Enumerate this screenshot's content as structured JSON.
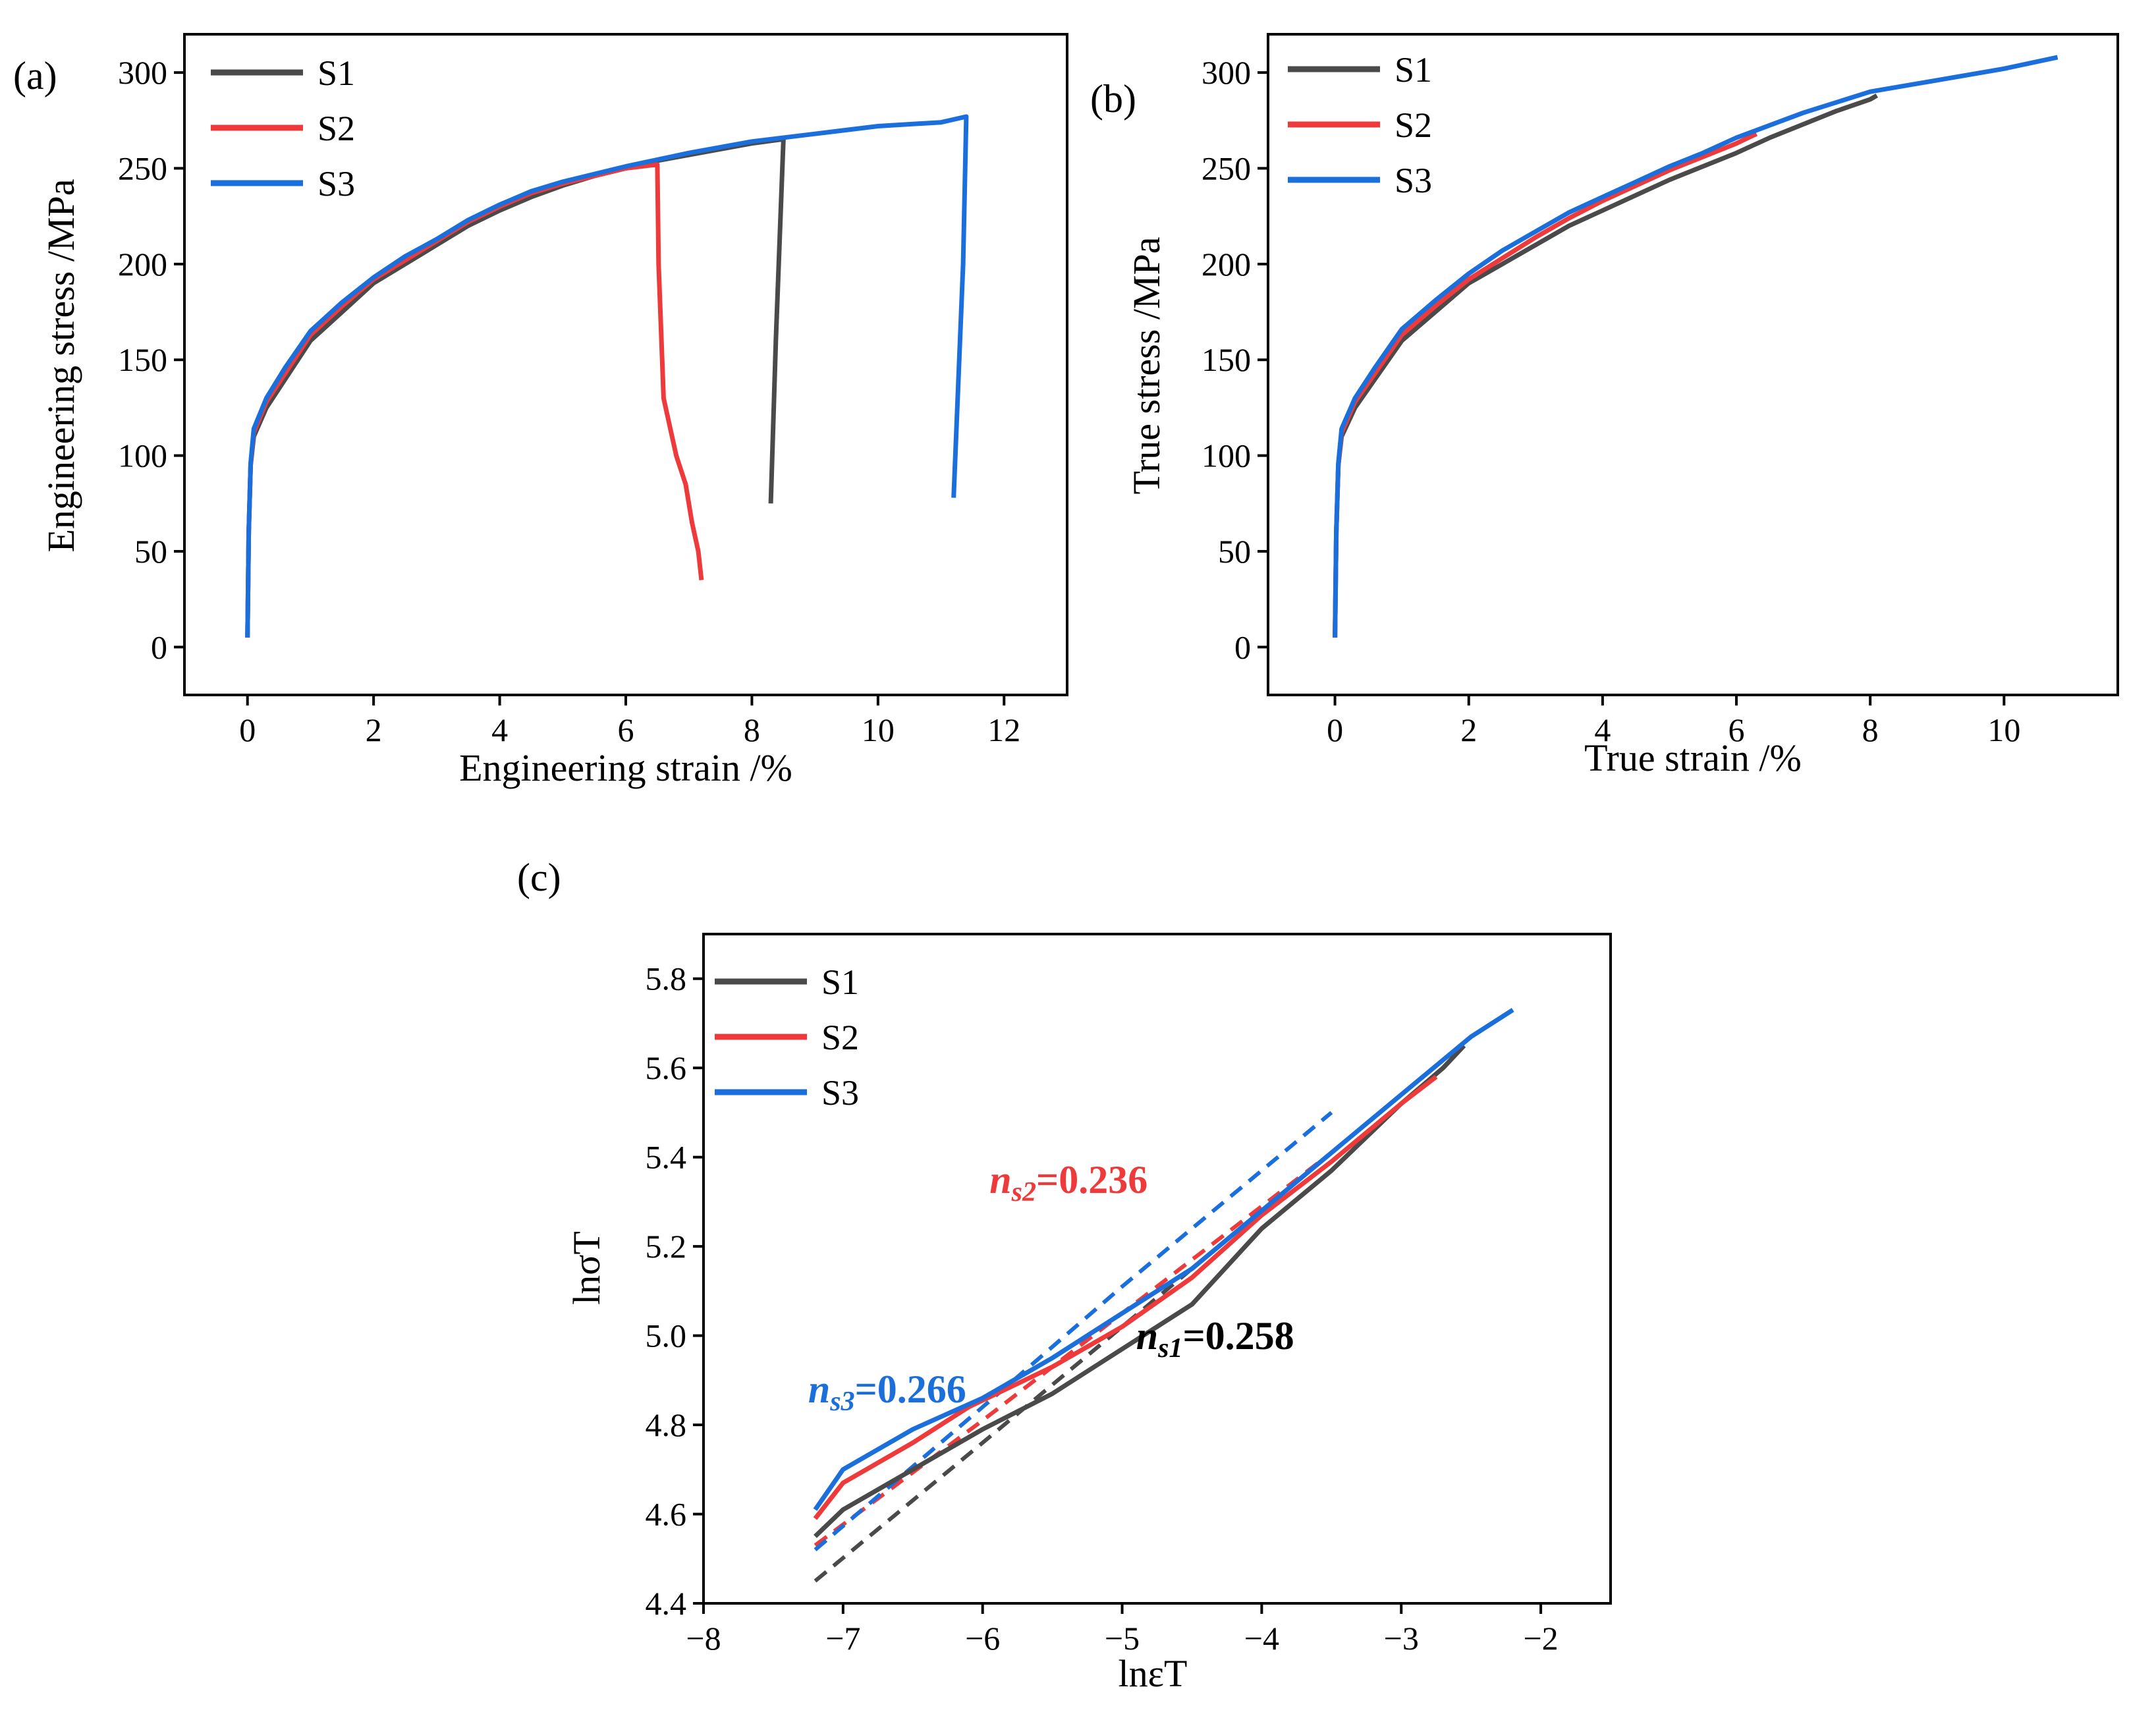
{
  "colors": {
    "S1": "#4a4a4a",
    "S2": "#ee3a3a",
    "S3": "#1a6fdc"
  },
  "chart_data": [
    {
      "panel": "(a)",
      "type": "line",
      "xlabel": "Engineering strain /%",
      "ylabel": "Engineering stress /MPa",
      "xlim": [
        -1,
        13
      ],
      "ylim": [
        -25,
        320
      ],
      "xticks": [
        "0",
        "2",
        "4",
        "6",
        "8",
        "10",
        "12"
      ],
      "yticks": [
        "0",
        "50",
        "100",
        "150",
        "200",
        "250",
        "300"
      ],
      "legend": [
        "S1",
        "S2",
        "S3"
      ],
      "series": [
        {
          "name": "S1",
          "x": [
            0,
            0.02,
            0.05,
            0.1,
            0.3,
            0.6,
            1.0,
            1.5,
            2.0,
            2.5,
            3.0,
            3.5,
            4.0,
            4.5,
            5.0,
            5.5,
            6.0,
            6.5,
            7.0,
            7.5,
            8.0,
            8.45,
            8.5,
            8.38,
            8.3
          ],
          "y": [
            5,
            60,
            95,
            110,
            125,
            140,
            160,
            175,
            190,
            200,
            210,
            220,
            228,
            235,
            241,
            246,
            250,
            254,
            257,
            260,
            263,
            265,
            265,
            160,
            75
          ]
        },
        {
          "name": "S2",
          "x": [
            0,
            0.02,
            0.05,
            0.1,
            0.3,
            0.6,
            1.0,
            1.5,
            2.0,
            2.5,
            3.0,
            3.5,
            4.0,
            4.5,
            5.0,
            5.5,
            6.0,
            6.5,
            6.52,
            6.6,
            6.8,
            6.95,
            7.05,
            7.15,
            7.2
          ],
          "y": [
            5,
            60,
            95,
            112,
            128,
            143,
            163,
            178,
            192,
            202,
            212,
            222,
            230,
            237,
            242,
            246,
            250,
            252,
            200,
            130,
            100,
            85,
            65,
            50,
            35
          ]
        },
        {
          "name": "S3",
          "x": [
            0,
            0.02,
            0.05,
            0.1,
            0.3,
            0.6,
            1.0,
            1.5,
            2.0,
            2.5,
            3.0,
            3.5,
            4.0,
            4.5,
            5.0,
            6.0,
            7.0,
            8.0,
            9.0,
            10.0,
            11.0,
            11.4,
            11.35,
            11.2
          ],
          "y": [
            5,
            60,
            96,
            114,
            130,
            146,
            165,
            180,
            193,
            204,
            213,
            223,
            231,
            238,
            243,
            251,
            258,
            264,
            268,
            272,
            274,
            277,
            200,
            78
          ]
        }
      ]
    },
    {
      "panel": "(b)",
      "type": "line",
      "xlabel": "True strain /%",
      "ylabel": "True stress /MPa",
      "xlim": [
        -1,
        11.7
      ],
      "ylim": [
        -25,
        320
      ],
      "xticks": [
        "0",
        "2",
        "4",
        "6",
        "8",
        "10"
      ],
      "yticks": [
        "0",
        "50",
        "100",
        "150",
        "200",
        "250",
        "300"
      ],
      "legend": [
        "S1",
        "S2",
        "S3"
      ],
      "series": [
        {
          "name": "S1",
          "x": [
            0,
            0.02,
            0.05,
            0.1,
            0.3,
            0.6,
            1.0,
            1.5,
            2.0,
            2.5,
            3.0,
            3.5,
            4.0,
            4.5,
            5.0,
            5.5,
            6.0,
            6.5,
            7.0,
            7.5,
            8.0,
            8.1
          ],
          "y": [
            5,
            60,
            95,
            110,
            125,
            140,
            160,
            175,
            190,
            200,
            210,
            220,
            228,
            236,
            244,
            251,
            258,
            266,
            273,
            280,
            286,
            288
          ]
        },
        {
          "name": "S2",
          "x": [
            0,
            0.02,
            0.05,
            0.1,
            0.3,
            0.6,
            1.0,
            1.5,
            2.0,
            2.5,
            3.0,
            3.5,
            4.0,
            4.5,
            5.0,
            5.5,
            6.0,
            6.3
          ],
          "y": [
            5,
            60,
            95,
            112,
            128,
            143,
            163,
            178,
            192,
            203,
            214,
            224,
            233,
            241,
            249,
            256,
            263,
            268
          ]
        },
        {
          "name": "S3",
          "x": [
            0,
            0.02,
            0.05,
            0.1,
            0.3,
            0.6,
            1.0,
            1.5,
            2.0,
            2.5,
            3.0,
            3.5,
            4.0,
            4.5,
            5.0,
            5.5,
            6.0,
            7.0,
            8.0,
            9.0,
            10.0,
            10.8
          ],
          "y": [
            5,
            60,
            96,
            114,
            130,
            146,
            166,
            181,
            195,
            207,
            217,
            227,
            235,
            243,
            251,
            258,
            266,
            279,
            290,
            296,
            302,
            308
          ]
        }
      ]
    },
    {
      "panel": "(c)",
      "type": "line",
      "xlabel": "lnεT",
      "ylabel": "lnσT",
      "xlim": [
        -8,
        -1.5
      ],
      "ylim": [
        4.4,
        5.9
      ],
      "xticks": [
        "−8",
        "−7",
        "−6",
        "−5",
        "−4",
        "−3",
        "−2"
      ],
      "yticks": [
        "4.4",
        "4.6",
        "4.8",
        "5.0",
        "5.2",
        "5.4",
        "5.6",
        "5.8"
      ],
      "legend": [
        "S1",
        "S2",
        "S3"
      ],
      "annotations": [
        {
          "series": "S2",
          "n_label": "n",
          "sub": "s2",
          "value": "=0.236",
          "at": [
            -5.95,
            5.32
          ]
        },
        {
          "series": "S1",
          "n_label": "n",
          "sub": "s1",
          "value": "=0.258",
          "at": [
            -4.9,
            4.97
          ]
        },
        {
          "series": "S3",
          "n_label": "n",
          "sub": "s3",
          "value": "=0.266",
          "at": [
            -7.25,
            4.85
          ]
        }
      ],
      "series": [
        {
          "name": "S1",
          "x": [
            -7.2,
            -7.0,
            -6.5,
            -6.0,
            -5.5,
            -5.0,
            -4.5,
            -4.0,
            -3.5,
            -3.0,
            -2.7,
            -2.55
          ],
          "y": [
            4.55,
            4.61,
            4.7,
            4.79,
            4.87,
            4.97,
            5.07,
            5.24,
            5.37,
            5.52,
            5.6,
            5.65
          ]
        },
        {
          "name": "S2",
          "x": [
            -7.2,
            -7.0,
            -6.5,
            -6.1,
            -5.5,
            -5.0,
            -4.5,
            -4.0,
            -3.5,
            -3.0,
            -2.75
          ],
          "y": [
            4.59,
            4.67,
            4.76,
            4.84,
            4.93,
            5.02,
            5.13,
            5.27,
            5.39,
            5.52,
            5.58
          ]
        },
        {
          "name": "S3",
          "x": [
            -7.2,
            -7.0,
            -6.5,
            -6.0,
            -5.5,
            -5.0,
            -4.5,
            -4.0,
            -3.5,
            -3.0,
            -2.5,
            -2.2
          ],
          "y": [
            4.61,
            4.7,
            4.79,
            4.86,
            4.95,
            5.05,
            5.15,
            5.28,
            5.41,
            5.54,
            5.67,
            5.73
          ]
        }
      ],
      "fits": [
        {
          "name": "S1 fit",
          "x": [
            -7.2,
            -6.0,
            -5.0,
            -4.0,
            -3.5
          ],
          "y": [
            4.45,
            4.76,
            5.02,
            5.28,
            5.41
          ]
        },
        {
          "name": "S2 fit",
          "x": [
            -7.2,
            -6.0,
            -5.0,
            -4.0,
            -3.5
          ],
          "y": [
            4.53,
            4.81,
            5.05,
            5.29,
            5.41
          ]
        },
        {
          "name": "S3 fit",
          "x": [
            -7.2,
            -6.0,
            -5.0,
            -4.0,
            -3.5
          ],
          "y": [
            4.52,
            4.84,
            5.11,
            5.37,
            5.5
          ]
        }
      ]
    }
  ]
}
